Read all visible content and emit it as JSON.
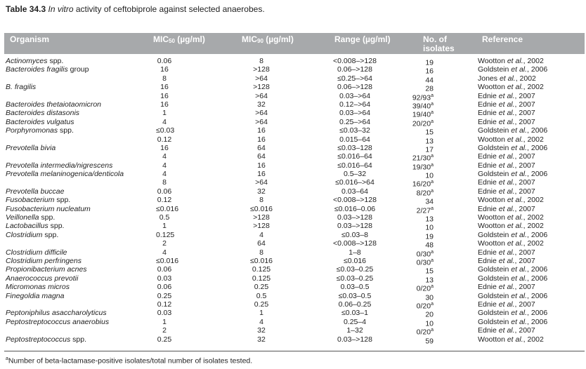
{
  "caption": {
    "label": "Table 34.3",
    "text_italic": "In vitro",
    "text": " activity of ceftobiprole against selected anaerobes."
  },
  "header": {
    "organism": "Organism",
    "mic50_prefix": "MIC",
    "mic50_sub": "50",
    "mic50_unit": " (µg/ml)",
    "mic90_prefix": "MIC",
    "mic90_sub": "90",
    "mic90_unit": " (µg/ml)",
    "range": "Range (µg/ml)",
    "isolates": "No. of isolates",
    "reference": "Reference"
  },
  "header_color": "#a7a9ab",
  "rows": [
    {
      "org": "Actinomyces",
      "org_suffix": " spp.",
      "mic50": "0.06",
      "mic90": "8",
      "range": "<0.008–>128",
      "iso": "19",
      "iso_sup": "",
      "ref_author": "Wootton ",
      "ref_etal": "et al.",
      "ref_year": ", 2002"
    },
    {
      "org": "Bacteroides fragilis",
      "org_suffix": " group",
      "mic50": "16",
      "mic90": ">128",
      "range": "0.06–>128",
      "iso": "16",
      "iso_sup": "",
      "ref_author": "Goldstein ",
      "ref_etal": "et al.",
      "ref_year": ", 2006"
    },
    {
      "org": "",
      "org_suffix": "",
      "mic50": "8",
      "mic90": ">64",
      "range": "≤0.25–>64",
      "iso": "44",
      "iso_sup": "",
      "ref_author": "Jones ",
      "ref_etal": "et al.",
      "ref_year": ", 2002"
    },
    {
      "org": "B. fragilis",
      "org_suffix": "",
      "mic50": "16",
      "mic90": ">128",
      "range": "0.06–>128",
      "iso": "28",
      "iso_sup": "",
      "ref_author": "Wootton ",
      "ref_etal": "et al.",
      "ref_year": ", 2002"
    },
    {
      "org": "",
      "org_suffix": "",
      "mic50": "16",
      "mic90": ">64",
      "range": "0.03–>64",
      "iso": "92/93",
      "iso_sup": "a",
      "ref_author": "Ednie ",
      "ref_etal": "et al.",
      "ref_year": ", 2007"
    },
    {
      "org": "Bacteroides thetaiotaomicron",
      "org_suffix": "",
      "mic50": "16",
      "mic90": "32",
      "range": "0.12–>64",
      "iso": "39/40",
      "iso_sup": "a",
      "ref_author": "Ednie ",
      "ref_etal": "et al.",
      "ref_year": ", 2007"
    },
    {
      "org": "Bacteroides distasonis",
      "org_suffix": "",
      "mic50": "1",
      "mic90": ">64",
      "range": "0.03–>64",
      "iso": "19/40",
      "iso_sup": "a",
      "ref_author": "Ednie ",
      "ref_etal": "et al.",
      "ref_year": ", 2007"
    },
    {
      "org": "Bacteroides vulgatus",
      "org_suffix": "",
      "mic50": "4",
      "mic90": ">64",
      "range": "0.25–>64",
      "iso": "20/20",
      "iso_sup": "a",
      "ref_author": "Ednie ",
      "ref_etal": "et al.",
      "ref_year": ", 2007"
    },
    {
      "org": "Porphyromonas",
      "org_suffix": " spp.",
      "mic50": "≤0.03",
      "mic90": "16",
      "range": "≤0.03–32",
      "iso": "15",
      "iso_sup": "",
      "ref_author": "Goldstein ",
      "ref_etal": "et al.",
      "ref_year": ", 2006"
    },
    {
      "org": "",
      "org_suffix": "",
      "mic50": "0.12",
      "mic90": "16",
      "range": "0.015–64",
      "iso": "13",
      "iso_sup": "",
      "ref_author": "Wootton ",
      "ref_etal": "et al.",
      "ref_year": ", 2002"
    },
    {
      "org": "Prevotella bivia",
      "org_suffix": "",
      "mic50": "16",
      "mic90": "64",
      "range": "≤0.03–128",
      "iso": "17",
      "iso_sup": "",
      "ref_author": "Goldstein ",
      "ref_etal": "et al.",
      "ref_year": ", 2006"
    },
    {
      "org": "",
      "org_suffix": "",
      "mic50": "4",
      "mic90": "64",
      "range": "≤0.016–64",
      "iso": "21/30",
      "iso_sup": "a",
      "ref_author": "Ednie ",
      "ref_etal": "et al.",
      "ref_year": ", 2007"
    },
    {
      "org": "Prevotella intermedia/nigrescens",
      "org_suffix": "",
      "mic50": "4",
      "mic90": "16",
      "range": "≤0.016–64",
      "iso": "19/30",
      "iso_sup": "a",
      "ref_author": "Ednie ",
      "ref_etal": "et al.",
      "ref_year": ", 2007"
    },
    {
      "org": "Prevotella melaninogenica/denticola",
      "org_suffix": "",
      "mic50": "4",
      "mic90": "16",
      "range": "0.5–32",
      "iso": "10",
      "iso_sup": "",
      "ref_author": "Goldstein ",
      "ref_etal": "et al.",
      "ref_year": ", 2006"
    },
    {
      "org": "",
      "org_suffix": "",
      "mic50": "8",
      "mic90": ">64",
      "range": "≤0.016–>64",
      "iso": "16/20",
      "iso_sup": "a",
      "ref_author": "Ednie ",
      "ref_etal": "et al.",
      "ref_year": ", 2007"
    },
    {
      "org": "Prevotella buccae",
      "org_suffix": "",
      "mic50": "0.06",
      "mic90": "32",
      "range": "0.03–64",
      "iso": "8/20",
      "iso_sup": "a",
      "ref_author": "Ednie ",
      "ref_etal": "et al.",
      "ref_year": ", 2007"
    },
    {
      "org": "Fusobacterium",
      "org_suffix": " spp.",
      "mic50": "0.12",
      "mic90": "8",
      "range": "<0.008–>128",
      "iso": "34",
      "iso_sup": "",
      "ref_author": "Wootton ",
      "ref_etal": "et al.",
      "ref_year": ", 2002"
    },
    {
      "org": "Fusobacterium nucleatum",
      "org_suffix": "",
      "mic50": "≤0.016",
      "mic90": "≤0.016",
      "range": "≤0.016–0.06",
      "iso": "2/27",
      "iso_sup": "a",
      "ref_author": "Ednie ",
      "ref_etal": "et al.",
      "ref_year": ", 2007"
    },
    {
      "org": "Veillonella",
      "org_suffix": " spp.",
      "mic50": "0.5",
      "mic90": ">128",
      "range": "0.03–>128",
      "iso": "13",
      "iso_sup": "",
      "ref_author": "Wootton ",
      "ref_etal": "et al.",
      "ref_year": ", 2002"
    },
    {
      "org": "Lactobacillus",
      "org_suffix": " spp.",
      "mic50": "1",
      "mic90": ">128",
      "range": "0.03–>128",
      "iso": "10",
      "iso_sup": "",
      "ref_author": "Wootton ",
      "ref_etal": "et al.",
      "ref_year": ", 2002"
    },
    {
      "org": "Clostridium",
      "org_suffix": " spp.",
      "mic50": "0.125",
      "mic90": "4",
      "range": "≤0.03–8",
      "iso": "19",
      "iso_sup": "",
      "ref_author": "Goldstein ",
      "ref_etal": "et al.",
      "ref_year": ", 2006"
    },
    {
      "org": "",
      "org_suffix": "",
      "mic50": "2",
      "mic90": "64",
      "range": "<0.008–>128",
      "iso": "48",
      "iso_sup": "",
      "ref_author": "Wootton ",
      "ref_etal": "et al.",
      "ref_year": ", 2002"
    },
    {
      "org": "Clostridium difficile",
      "org_suffix": "",
      "mic50": "4",
      "mic90": "8",
      "range": "1–8",
      "iso": "0/30",
      "iso_sup": "a",
      "ref_author": "Ednie ",
      "ref_etal": "et al.",
      "ref_year": ", 2007"
    },
    {
      "org": "Clostridium perfringens",
      "org_suffix": "",
      "mic50": "≤0.016",
      "mic90": "≤0.016",
      "range": "≤0.016",
      "iso": "0/30",
      "iso_sup": "a",
      "ref_author": "Ednie ",
      "ref_etal": "et al.",
      "ref_year": ", 2007"
    },
    {
      "org": "Propionibacterium acnes",
      "org_suffix": "",
      "mic50": "0.06",
      "mic90": "0.125",
      "range": "≤0.03–0.25",
      "iso": "15",
      "iso_sup": "",
      "ref_author": "Goldstein ",
      "ref_etal": "et al.",
      "ref_year": ", 2006"
    },
    {
      "org": "Anaerococcus prevotii",
      "org_suffix": "",
      "mic50": "0.03",
      "mic90": "0.125",
      "range": "≤0.03–0.25",
      "iso": "13",
      "iso_sup": "",
      "ref_author": "Goldstein ",
      "ref_etal": "et al.",
      "ref_year": ", 2006"
    },
    {
      "org": "Micromonas micros",
      "org_suffix": "",
      "mic50": "0.06",
      "mic90": "0.25",
      "range": "0.03–0.5",
      "iso": "0/20",
      "iso_sup": "a",
      "ref_author": "Ednie ",
      "ref_etal": "et al.",
      "ref_year": ", 2007"
    },
    {
      "org": "Finegoldia magna",
      "org_suffix": "",
      "mic50": "0.25",
      "mic90": "0.5",
      "range": "≤0.03–0.5",
      "iso": "30",
      "iso_sup": "",
      "ref_author": "Goldstein ",
      "ref_etal": "et al.",
      "ref_year": ", 2006"
    },
    {
      "org": "",
      "org_suffix": "",
      "mic50": "0.12",
      "mic90": "0.25",
      "range": "0.06–0.25",
      "iso": "0/20",
      "iso_sup": "a",
      "ref_author": "Ednie ",
      "ref_etal": "et al.",
      "ref_year": ", 2007"
    },
    {
      "org": "Peptoniphilus asaccharolyticus",
      "org_suffix": "",
      "mic50": "0.03",
      "mic90": "1",
      "range": "≤0.03–1",
      "iso": "20",
      "iso_sup": "",
      "ref_author": "Goldstein ",
      "ref_etal": "et al.",
      "ref_year": ", 2006"
    },
    {
      "org": "Peptostreptococcus anaerobius",
      "org_suffix": "",
      "mic50": "1",
      "mic90": "4",
      "range": "0.25–4",
      "iso": "10",
      "iso_sup": "",
      "ref_author": "Goldstein ",
      "ref_etal": "et al.",
      "ref_year": ", 2006"
    },
    {
      "org": "",
      "org_suffix": "",
      "mic50": "2",
      "mic90": "32",
      "range": "1–32",
      "iso": "0/20",
      "iso_sup": "a",
      "ref_author": "Ednie ",
      "ref_etal": "et al.",
      "ref_year": ", 2007"
    },
    {
      "org": "Peptostreptococcus",
      "org_suffix": " spp.",
      "mic50": "0.25",
      "mic90": "32",
      "range": "0.03–>128",
      "iso": "59",
      "iso_sup": "",
      "ref_author": "Wootton ",
      "ref_etal": "et al.",
      "ref_year": ", 2002"
    }
  ],
  "footnote": {
    "mark": "a",
    "text": "Number of beta-lactamase-positive isolates/total number of isolates tested."
  }
}
